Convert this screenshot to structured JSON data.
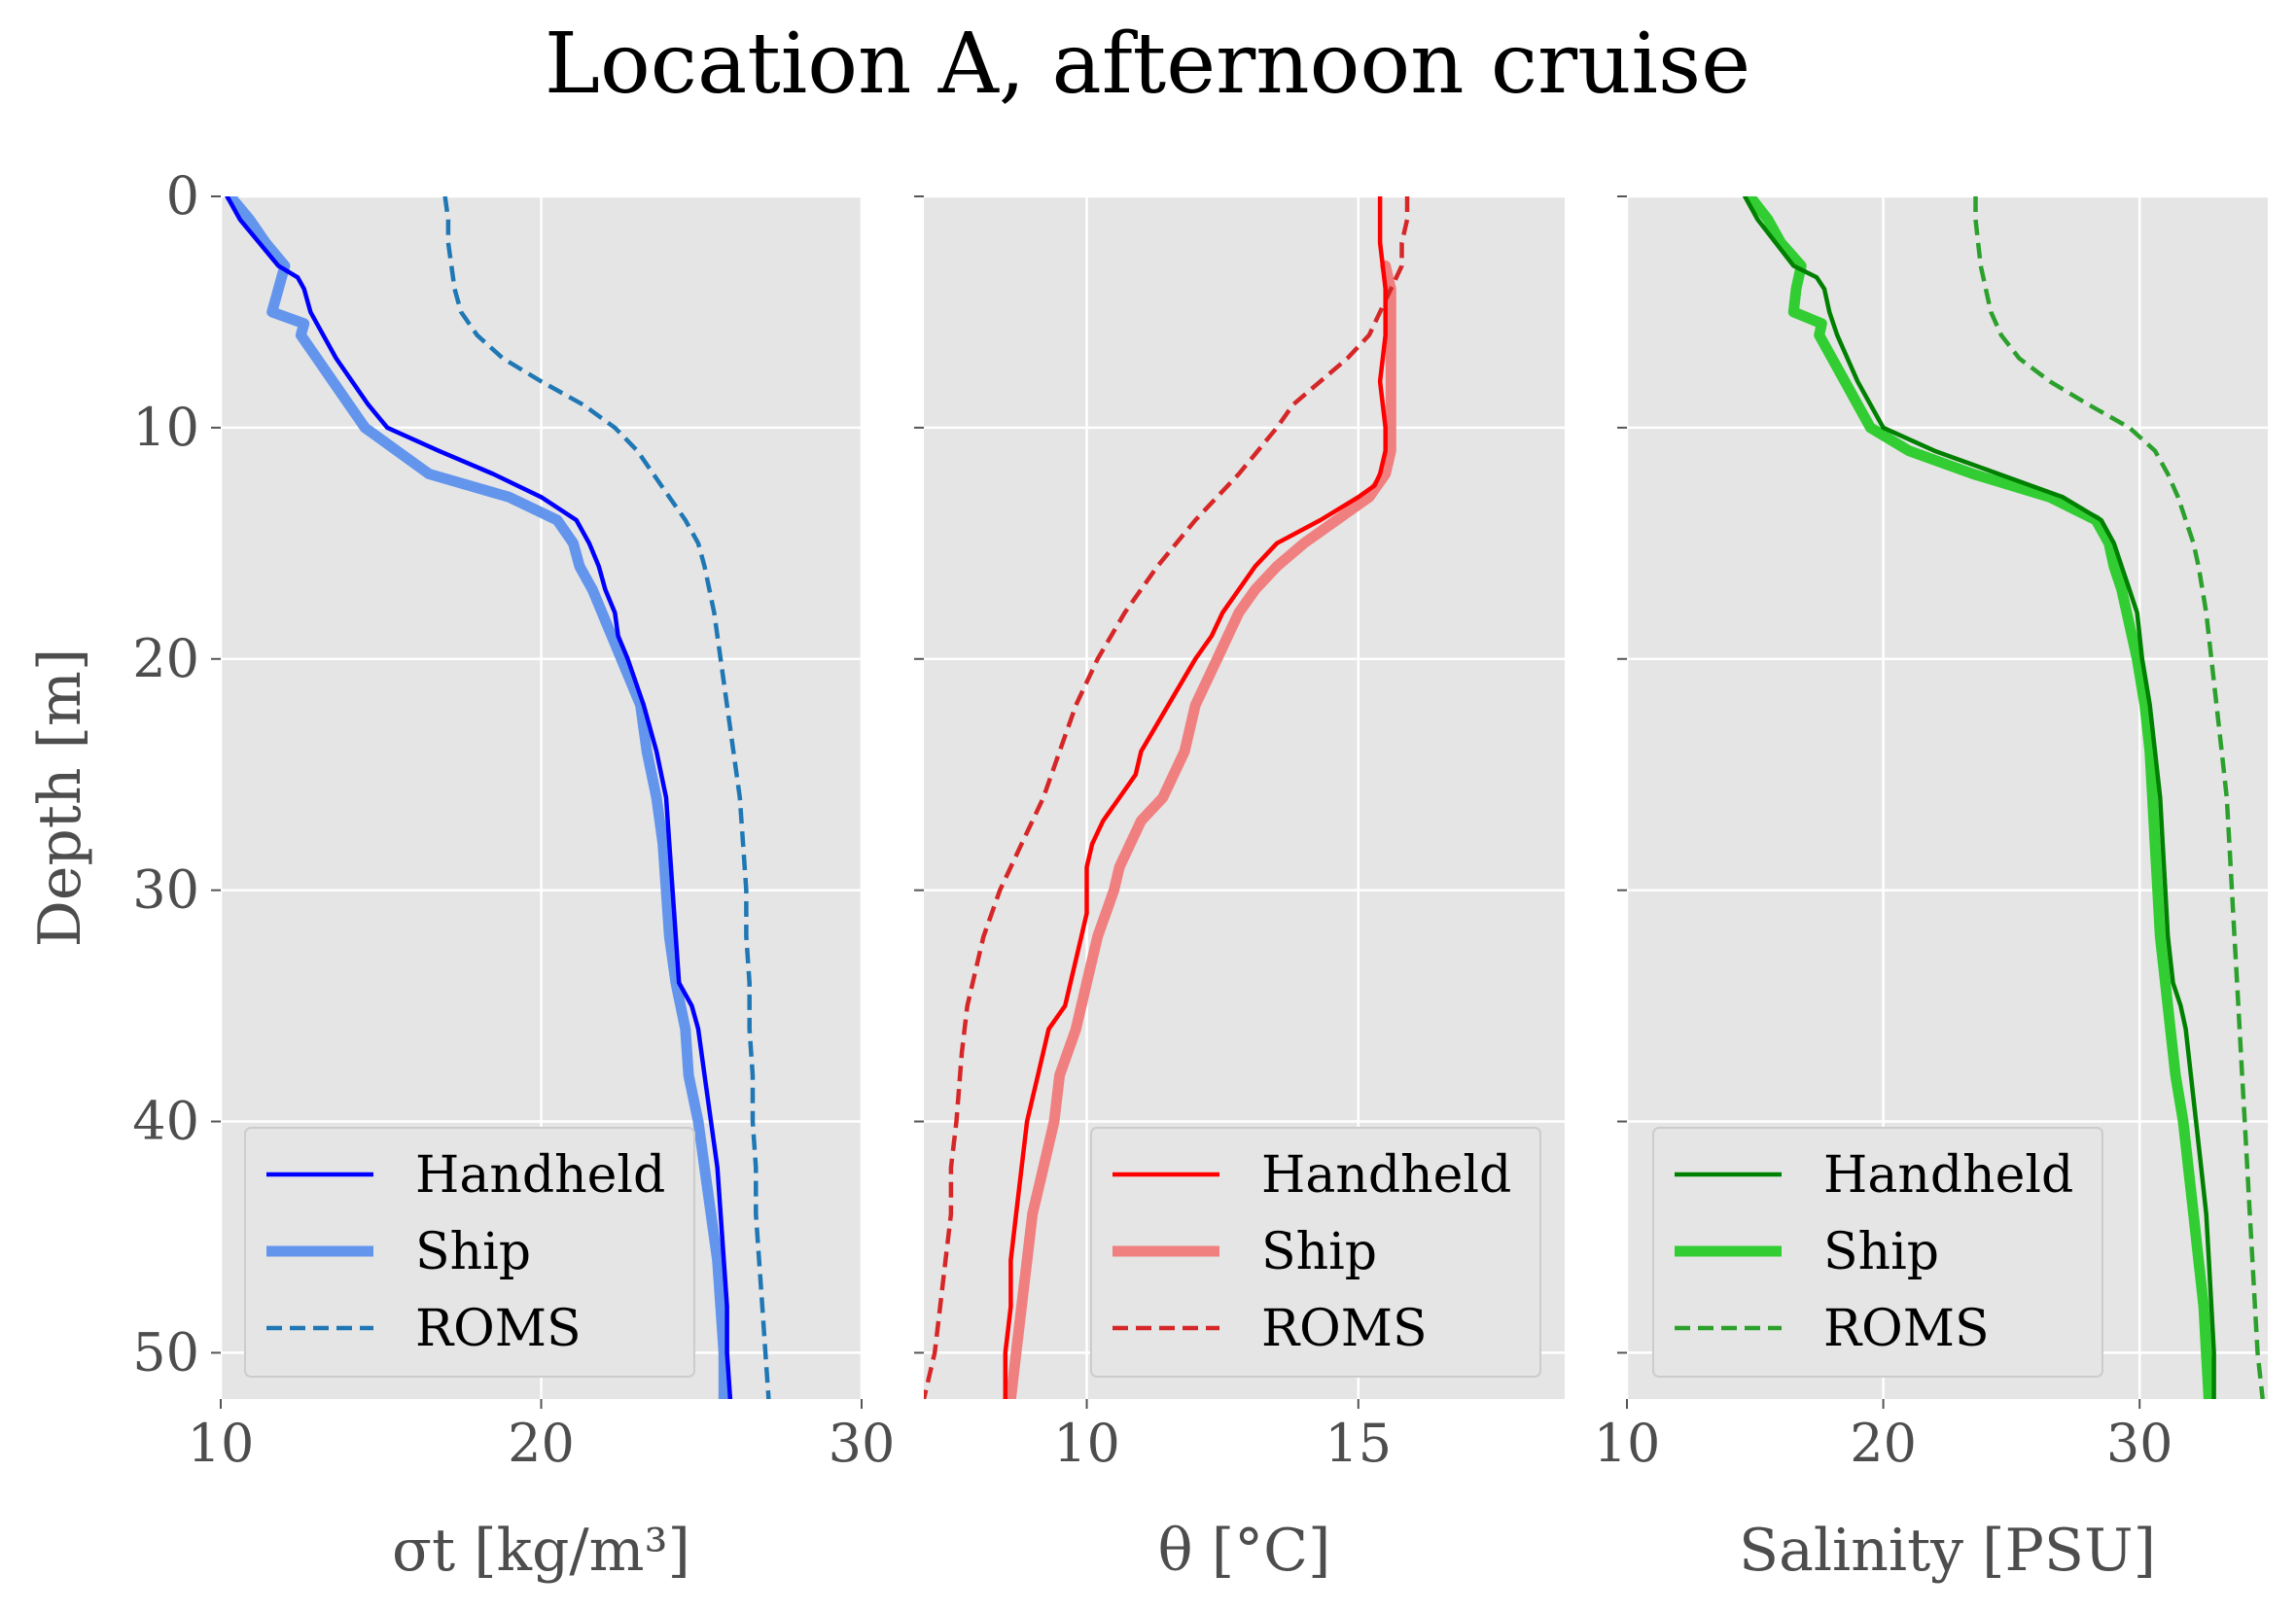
{
  "figure_title": "Location A, afternoon cruise",
  "chart_data": [
    {
      "type": "line",
      "xlabel": "σt [kg/m³]",
      "ylabel": "Depth [m]",
      "xlim": [
        10,
        30
      ],
      "ylim": [
        52,
        0
      ],
      "xticks": [
        "10",
        "20",
        "30"
      ],
      "yticks": [
        "0",
        "10",
        "20",
        "30",
        "40",
        "50"
      ],
      "grid": true,
      "legend": "lower-left",
      "series": [
        {
          "name": "Handheld",
          "style": "solid",
          "color": "#0000ff",
          "depth": [
            0,
            1,
            2,
            3,
            3.5,
            4,
            5,
            6,
            7,
            8,
            9,
            10,
            11,
            12,
            13,
            14,
            15,
            16,
            17,
            18,
            19,
            20,
            22,
            24,
            26,
            28,
            30,
            32,
            34,
            35,
            36,
            38,
            40,
            42,
            44,
            46,
            48,
            50,
            52
          ],
          "values": [
            10.2,
            10.6,
            11.2,
            11.8,
            12.4,
            12.6,
            12.8,
            13.2,
            13.6,
            14.1,
            14.6,
            15.2,
            16.8,
            18.5,
            20.0,
            21.1,
            21.5,
            21.8,
            22.0,
            22.3,
            22.4,
            22.7,
            23.2,
            23.6,
            23.9,
            24.0,
            24.1,
            24.2,
            24.3,
            24.7,
            24.9,
            25.1,
            25.3,
            25.5,
            25.6,
            25.7,
            25.8,
            25.8,
            25.9
          ]
        },
        {
          "name": "Ship",
          "style": "thick",
          "color": "#6495ed",
          "depth": [
            0,
            1,
            2,
            3,
            4,
            5,
            5.5,
            6,
            7,
            8,
            9,
            10,
            11,
            12,
            13,
            14,
            15,
            16,
            17,
            18,
            19,
            20,
            22,
            24,
            26,
            28,
            30,
            32,
            34,
            36,
            38,
            40,
            42,
            44,
            46,
            48,
            50,
            52
          ],
          "values": [
            10.3,
            10.9,
            11.4,
            12.0,
            11.8,
            11.6,
            12.6,
            12.5,
            13.0,
            13.5,
            14.0,
            14.5,
            15.5,
            16.5,
            19.0,
            20.5,
            21.0,
            21.2,
            21.6,
            21.9,
            22.2,
            22.5,
            23.1,
            23.3,
            23.6,
            23.8,
            23.9,
            24.0,
            24.2,
            24.5,
            24.6,
            24.9,
            25.1,
            25.3,
            25.5,
            25.6,
            25.7,
            25.7
          ]
        },
        {
          "name": "ROMS",
          "style": "dashed",
          "color": "#1f77b4",
          "depth": [
            0,
            1,
            2,
            3,
            4,
            5,
            6,
            7,
            8,
            9,
            10,
            11,
            12,
            13,
            14,
            15,
            16,
            18,
            20,
            22,
            24,
            26,
            28,
            30,
            32,
            34,
            36,
            38,
            40,
            42,
            44,
            46,
            48,
            50,
            52
          ],
          "values": [
            17.0,
            17.1,
            17.1,
            17.2,
            17.3,
            17.5,
            18.0,
            18.8,
            20.0,
            21.3,
            22.3,
            23.0,
            23.5,
            24.0,
            24.5,
            24.9,
            25.1,
            25.4,
            25.6,
            25.8,
            26.0,
            26.2,
            26.3,
            26.4,
            26.4,
            26.5,
            26.5,
            26.6,
            26.6,
            26.7,
            26.7,
            26.8,
            26.9,
            27.0,
            27.1
          ]
        }
      ]
    },
    {
      "type": "line",
      "xlabel": "θ [°C]",
      "xlim": [
        7,
        18.8
      ],
      "ylim": [
        52,
        0
      ],
      "xticks": [
        "10",
        "15"
      ],
      "grid": true,
      "legend": "lower-right",
      "series": [
        {
          "name": "Handheld",
          "style": "solid",
          "color": "#ff0000",
          "depth": [
            0,
            2,
            4,
            6,
            8,
            10,
            11,
            12,
            12.5,
            13,
            14,
            15,
            16,
            17,
            18,
            19,
            20,
            22,
            24,
            25,
            26,
            27,
            28,
            29,
            30,
            31,
            32,
            33,
            34,
            35,
            36,
            38,
            40,
            42,
            44,
            46,
            48,
            50,
            52
          ],
          "values": [
            15.4,
            15.4,
            15.5,
            15.5,
            15.4,
            15.5,
            15.5,
            15.4,
            15.3,
            15.0,
            14.3,
            13.5,
            13.1,
            12.8,
            12.5,
            12.3,
            12.0,
            11.5,
            11.0,
            10.9,
            10.6,
            10.3,
            10.1,
            10.0,
            10.0,
            10.0,
            9.9,
            9.8,
            9.7,
            9.6,
            9.3,
            9.1,
            8.9,
            8.8,
            8.7,
            8.6,
            8.6,
            8.5,
            8.5
          ]
        },
        {
          "name": "Ship",
          "style": "thick",
          "color": "#f08080",
          "depth": [
            3,
            4,
            6,
            8,
            10,
            11,
            12,
            13,
            14,
            15,
            16,
            17,
            18,
            19,
            20,
            22,
            24,
            26,
            27,
            28,
            29,
            30,
            32,
            34,
            36,
            38,
            40,
            42,
            44,
            46,
            48,
            50,
            52
          ],
          "values": [
            15.5,
            15.6,
            15.6,
            15.6,
            15.6,
            15.6,
            15.5,
            15.2,
            14.6,
            14.0,
            13.5,
            13.1,
            12.8,
            12.6,
            12.4,
            12.0,
            11.8,
            11.4,
            11.0,
            10.8,
            10.6,
            10.5,
            10.2,
            10.0,
            9.8,
            9.5,
            9.4,
            9.2,
            9.0,
            8.9,
            8.8,
            8.7,
            8.6
          ]
        },
        {
          "name": "ROMS",
          "style": "dashed",
          "color": "#d62728",
          "depth": [
            0,
            1,
            2,
            3,
            4,
            5,
            6,
            7,
            8,
            9,
            10,
            12,
            14,
            16,
            18,
            20,
            22,
            24,
            26,
            28,
            30,
            32,
            33,
            35,
            37,
            40,
            42,
            44,
            46,
            48,
            50,
            52
          ],
          "values": [
            15.9,
            15.9,
            15.8,
            15.8,
            15.6,
            15.4,
            15.2,
            14.8,
            14.3,
            13.8,
            13.5,
            12.8,
            12.0,
            11.3,
            10.7,
            10.2,
            9.8,
            9.5,
            9.2,
            8.8,
            8.4,
            8.1,
            8.0,
            7.8,
            7.7,
            7.6,
            7.5,
            7.5,
            7.4,
            7.3,
            7.2,
            7.0
          ]
        }
      ]
    },
    {
      "type": "line",
      "xlabel": "Salinity [PSU]",
      "xlim": [
        10,
        35
      ],
      "ylim": [
        52,
        0
      ],
      "xticks": [
        "10",
        "20",
        "30"
      ],
      "grid": true,
      "legend": "lower-left",
      "series": [
        {
          "name": "Handheld",
          "style": "solid",
          "color": "#008000",
          "depth": [
            0,
            1,
            2,
            3,
            3.5,
            4,
            5,
            6,
            7,
            8,
            9,
            10,
            11,
            12,
            13,
            14,
            15,
            16,
            17,
            18,
            19,
            20,
            22,
            24,
            26,
            28,
            30,
            32,
            34,
            35,
            36,
            38,
            40,
            42,
            44,
            46,
            48,
            50,
            52
          ],
          "values": [
            14.6,
            15.1,
            15.8,
            16.5,
            17.4,
            17.7,
            17.9,
            18.2,
            18.6,
            19.0,
            19.5,
            20.0,
            22.0,
            24.5,
            27.0,
            28.5,
            29.0,
            29.3,
            29.6,
            29.9,
            30.0,
            30.1,
            30.4,
            30.6,
            30.8,
            30.9,
            31.0,
            31.1,
            31.3,
            31.6,
            31.8,
            32.0,
            32.2,
            32.4,
            32.6,
            32.7,
            32.8,
            32.9,
            32.9
          ]
        },
        {
          "name": "Ship",
          "style": "thick",
          "color": "#32cd32",
          "depth": [
            0,
            1,
            2,
            3,
            4,
            5,
            5.5,
            6,
            7,
            8,
            9,
            10,
            11,
            12,
            13,
            14,
            15,
            16,
            17,
            18,
            19,
            20,
            22,
            24,
            26,
            28,
            30,
            32,
            34,
            36,
            38,
            40,
            42,
            44,
            46,
            48,
            50,
            52
          ],
          "values": [
            14.8,
            15.5,
            16.0,
            16.8,
            16.6,
            16.5,
            17.6,
            17.5,
            18.0,
            18.5,
            19.0,
            19.5,
            21.0,
            23.5,
            26.5,
            28.3,
            28.8,
            29.0,
            29.3,
            29.5,
            29.7,
            29.9,
            30.2,
            30.4,
            30.5,
            30.6,
            30.7,
            30.8,
            31.0,
            31.2,
            31.4,
            31.7,
            31.9,
            32.1,
            32.3,
            32.5,
            32.6,
            32.7
          ]
        },
        {
          "name": "ROMS",
          "style": "dashed",
          "color": "#2ca02c",
          "depth": [
            0,
            1,
            2,
            3,
            4,
            5,
            6,
            7,
            8,
            9,
            10,
            11,
            12,
            13,
            14,
            15,
            16,
            18,
            20,
            22,
            24,
            26,
            28,
            30,
            32,
            34,
            36,
            38,
            40,
            42,
            44,
            46,
            48,
            50,
            52
          ],
          "values": [
            23.6,
            23.6,
            23.7,
            23.8,
            24.0,
            24.2,
            24.6,
            25.3,
            26.5,
            28.0,
            29.6,
            30.6,
            31.1,
            31.5,
            31.8,
            32.1,
            32.3,
            32.6,
            32.8,
            33.0,
            33.2,
            33.4,
            33.5,
            33.6,
            33.7,
            33.8,
            33.9,
            34.0,
            34.1,
            34.2,
            34.3,
            34.4,
            34.5,
            34.6,
            34.8
          ]
        }
      ]
    }
  ]
}
